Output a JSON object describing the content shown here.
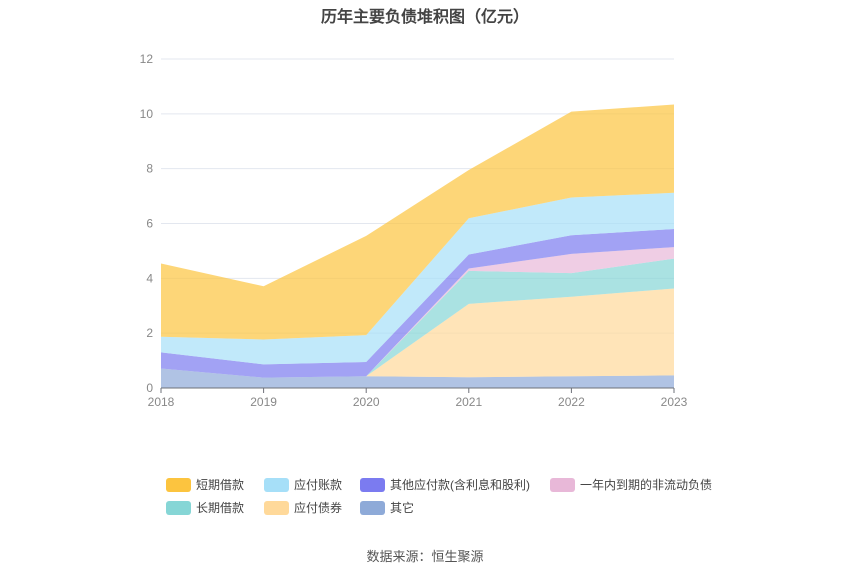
{
  "chart_data": {
    "type": "area",
    "stacked": true,
    "title": "历年主要负债堆积图（亿元）",
    "categories": [
      "2018",
      "2019",
      "2020",
      "2021",
      "2022",
      "2023"
    ],
    "ylim": [
      0,
      12
    ],
    "yticks": [
      0,
      2,
      4,
      6,
      8,
      10,
      12
    ],
    "grid": true,
    "legend_position": "bottom",
    "series": [
      {
        "name": "其它",
        "color": "#8eaad8",
        "values": [
          0.71,
          0.38,
          0.43,
          0.39,
          0.43,
          0.46
        ]
      },
      {
        "name": "应付债券",
        "color": "#ffd99a",
        "values": [
          0,
          0,
          0,
          2.68,
          2.9,
          3.17
        ]
      },
      {
        "name": "长期借款",
        "color": "#86d6d6",
        "values": [
          0,
          0,
          0,
          1.2,
          0.86,
          1.09
        ]
      },
      {
        "name": "一年内到期的非流动负债",
        "color": "#e8b8d8",
        "values": [
          0,
          0,
          0,
          0.09,
          0.7,
          0.42
        ]
      },
      {
        "name": "其他应付款(含利息和股利)",
        "color": "#7b7bf0",
        "values": [
          0.59,
          0.48,
          0.52,
          0.51,
          0.68,
          0.66
        ]
      },
      {
        "name": "应付账款",
        "color": "#a6dff8",
        "values": [
          0.57,
          0.91,
          0.98,
          1.32,
          1.38,
          1.32
        ]
      },
      {
        "name": "短期借款",
        "color": "#fcc43f",
        "values": [
          2.67,
          1.94,
          3.62,
          1.76,
          3.13,
          3.22
        ]
      }
    ]
  },
  "legend_rows": [
    [
      "短期借款",
      "应付账款",
      "其他应付款(含利息和股利)",
      "一年内到期的非流动负债"
    ],
    [
      "长期借款",
      "应付债券",
      "其它"
    ]
  ],
  "source": "数据来源：恒生聚源"
}
